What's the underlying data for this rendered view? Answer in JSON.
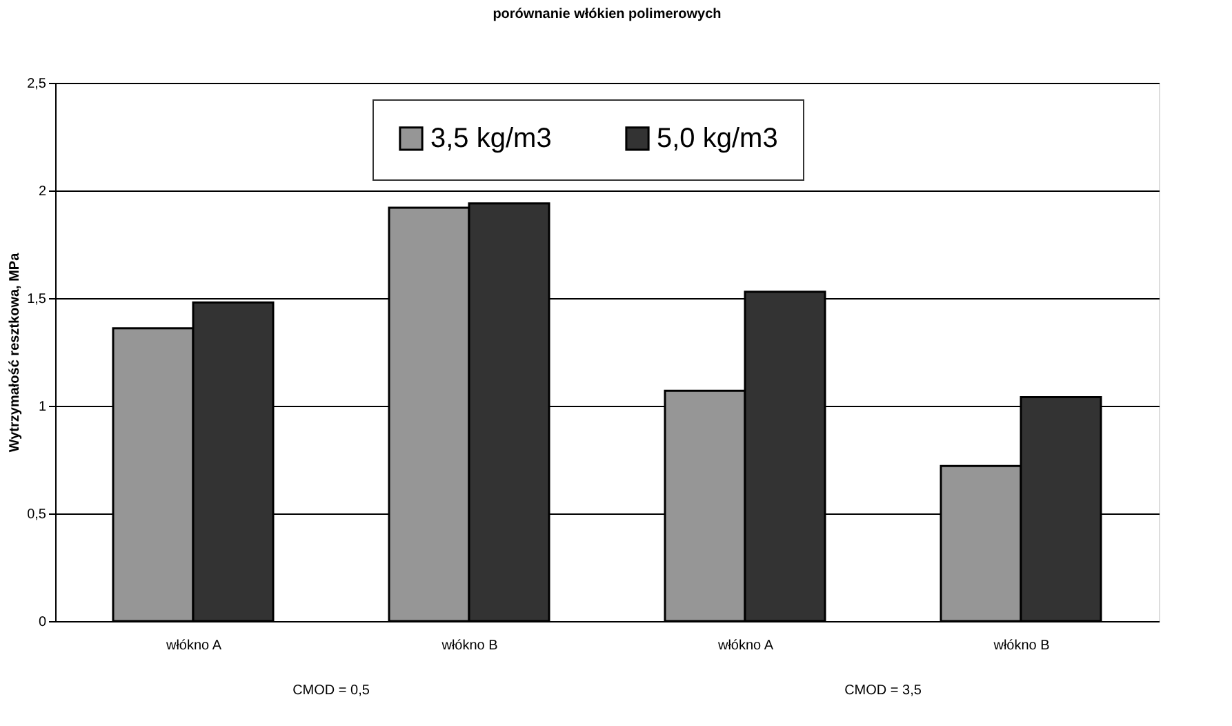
{
  "chart_data": {
    "type": "bar",
    "title": "porównanie włókien polimerowych",
    "ylabel": "Wytrzymałość resztkowa, MPa",
    "categories": [
      "włókno A",
      "włókno B",
      "włókno A",
      "włókno B"
    ],
    "series": [
      {
        "name": "3,5 kg/m3",
        "color": "#969696",
        "values": [
          1.36,
          1.92,
          1.07,
          0.72
        ]
      },
      {
        "name": "5,0 kg/m3",
        "color": "#333333",
        "values": [
          1.48,
          1.94,
          1.53,
          1.04
        ]
      }
    ],
    "annotations": [
      "CMOD = 0,5",
      "CMOD = 3,5"
    ],
    "ylim": [
      0,
      2.5
    ],
    "yticks": [
      0,
      {
        "value": 0.5,
        "label": "0,5"
      },
      1,
      {
        "value": 1.5,
        "label": "1,5"
      },
      2,
      {
        "value": 2.5,
        "label": "2,5"
      }
    ],
    "grid": "y",
    "legend": "top"
  }
}
